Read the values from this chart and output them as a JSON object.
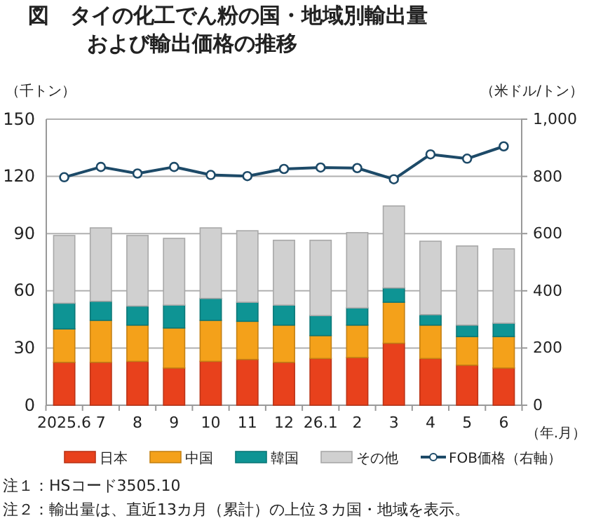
{
  "chart_data": {
    "type": "bar",
    "stacked": true,
    "title": "図　タイの化工でん粉の国・地域別輸出量",
    "subtitle": "および輸出価格の推移",
    "ylabel": "（千トン）",
    "y2label": "（米ドル/トン）",
    "xlabel": "（年.月）",
    "categories": [
      "2025.6",
      "7",
      "8",
      "9",
      "10",
      "11",
      "12",
      "26.1",
      "2",
      "3",
      "4",
      "5",
      "6"
    ],
    "series": [
      {
        "name": "日本",
        "color": "#e8411c",
        "values": [
          22.5,
          22.5,
          23,
          19.5,
          23,
          24,
          22.5,
          24.5,
          25,
          32.5,
          24.5,
          21,
          19.5
        ]
      },
      {
        "name": "中国",
        "color": "#f4a11a",
        "values": [
          17.5,
          22,
          19,
          21,
          21.5,
          20,
          19.5,
          12,
          17,
          21.5,
          17.5,
          15,
          16.5
        ]
      },
      {
        "name": "韓国",
        "color": "#0e9494",
        "values": [
          13.5,
          10,
          10,
          12,
          11.5,
          10,
          10.5,
          10.5,
          9,
          7.5,
          5.5,
          6,
          7
        ]
      },
      {
        "name": "その他",
        "color": "#d0d0d0",
        "values": [
          35.5,
          38.5,
          37,
          35,
          37,
          37.5,
          34,
          39.5,
          39.5,
          43,
          38.5,
          41.5,
          39
        ]
      },
      {
        "name": "FOB価格（右軸）",
        "type": "line",
        "axis": "y2",
        "color": "#1d4a68",
        "values": [
          797,
          833,
          810,
          833,
          805,
          801,
          826,
          831,
          829,
          790,
          877,
          862,
          905
        ]
      }
    ],
    "ylim": [
      0,
      150
    ],
    "yticks": [
      0,
      30,
      60,
      90,
      120,
      150
    ],
    "y2lim": [
      0,
      1000
    ],
    "y2ticks": [
      0,
      200,
      400,
      600,
      800,
      {
        "value": 1000,
        "label": "1,000"
      }
    ],
    "grid": "y",
    "legend": "bottom",
    "marker": "circle",
    "annotations": [
      "注１：HSコード3505.10",
      "注２：輸出量は、直近13カ月（累計）の上位３カ国・地域を表示。"
    ]
  }
}
